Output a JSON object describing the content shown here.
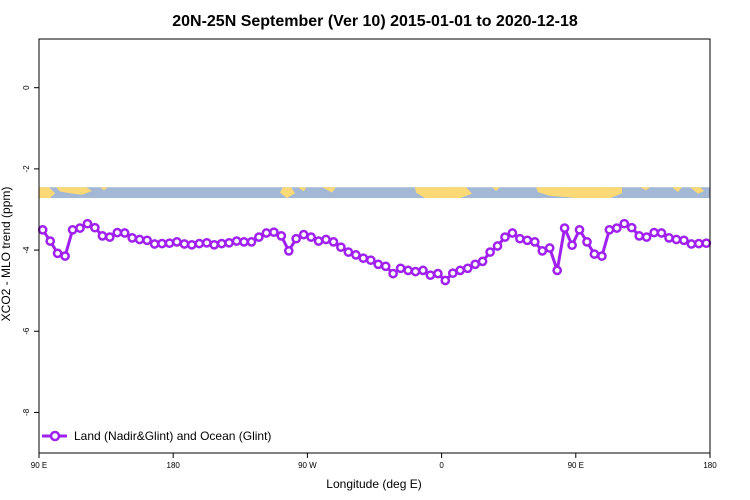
{
  "chart_data": {
    "type": "line",
    "title": "20N-25N September (Ver 10)   2015-01-01 to 2020-12-18",
    "xlabel": "Longitude (deg E)",
    "ylabel": "XCO2 - MLO trend (ppm)",
    "xlim": [
      90,
      450
    ],
    "ylim": [
      -9.0,
      1.2
    ],
    "x_ticks": [
      {
        "value": 90,
        "label": "90 E"
      },
      {
        "value": 162,
        "label": "180"
      },
      {
        "value": 234,
        "label": "90 W"
      },
      {
        "value": 306,
        "label": "0"
      },
      {
        "value": 378,
        "label": "90 E"
      },
      {
        "value": 450,
        "label": "180"
      }
    ],
    "y_ticks": [
      {
        "value": 0,
        "label": "0"
      },
      {
        "value": -2,
        "label": "-2"
      },
      {
        "value": -4,
        "label": "-4"
      },
      {
        "value": -6,
        "label": "-6"
      },
      {
        "value": -8,
        "label": "-8"
      }
    ],
    "map_strip": {
      "y_top": -2.45,
      "y_bottom": -2.72,
      "ocean_color": "#a3b8d4",
      "land_color": "#fcd977"
    },
    "legend": {
      "position": "bottom-left"
    },
    "series": [
      {
        "name": "Land (Nadir&Glint) and Ocean (Glint)",
        "color": "#a020f0",
        "x": [
          92,
          96,
          100,
          104,
          108,
          112,
          116,
          120,
          124,
          128,
          132,
          136,
          140,
          144,
          148,
          152,
          156,
          160,
          164,
          168,
          172,
          176,
          180,
          184,
          188,
          192,
          196,
          200,
          204,
          208,
          212,
          216,
          220,
          224,
          228,
          232,
          236,
          240,
          244,
          248,
          252,
          256,
          260,
          264,
          268,
          272,
          276,
          280,
          284,
          288,
          292,
          296,
          300,
          304,
          308,
          312,
          316,
          320,
          324,
          328,
          332,
          336,
          340,
          344,
          348,
          352,
          356,
          360,
          364,
          368,
          372,
          376,
          380,
          384,
          388,
          392,
          396,
          400,
          404,
          408,
          412,
          416,
          420,
          424,
          428,
          432,
          436,
          440,
          444,
          448
        ],
        "values": [
          -3.5,
          -3.78,
          -4.08,
          -4.15,
          -3.5,
          -3.46,
          -3.35,
          -3.45,
          -3.65,
          -3.68,
          -3.57,
          -3.58,
          -3.7,
          -3.74,
          -3.76,
          -3.85,
          -3.84,
          -3.83,
          -3.8,
          -3.85,
          -3.87,
          -3.84,
          -3.82,
          -3.87,
          -3.84,
          -3.82,
          -3.78,
          -3.8,
          -3.8,
          -3.68,
          -3.58,
          -3.56,
          -3.65,
          -4.02,
          -3.72,
          -3.62,
          -3.68,
          -3.78,
          -3.74,
          -3.8,
          -3.93,
          -4.05,
          -4.12,
          -4.2,
          -4.25,
          -4.35,
          -4.4,
          -4.58,
          -4.45,
          -4.5,
          -4.53,
          -4.5,
          -4.62,
          -4.58,
          -4.75,
          -4.57,
          -4.5,
          -4.45,
          -4.35,
          -4.28,
          -4.05,
          -3.9,
          -3.68,
          -3.58,
          -3.72,
          -3.76,
          -3.8,
          -4.02,
          -3.95,
          -4.5,
          -3.46,
          -3.88,
          -3.5,
          -3.8,
          -4.1,
          -4.15,
          -3.5,
          -3.46,
          -3.35,
          -3.45,
          -3.65,
          -3.68,
          -3.57,
          -3.58,
          -3.7,
          -3.74,
          -3.76,
          -3.85,
          -3.84,
          -3.83
        ]
      }
    ]
  }
}
